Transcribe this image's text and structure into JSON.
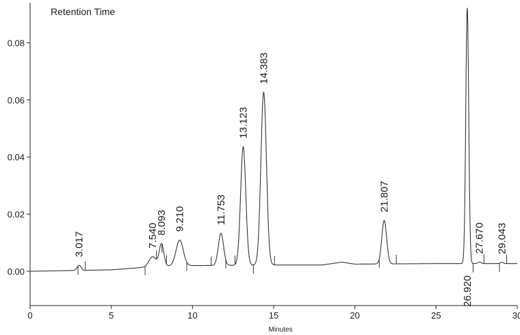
{
  "chart_data": {
    "type": "line",
    "legend": "Retention Time",
    "xlabel": "Minutes",
    "ylabel": "",
    "xlim": [
      0,
      30
    ],
    "ylim": [
      -0.012,
      0.094
    ],
    "xticks": [
      0,
      5,
      10,
      15,
      20,
      25,
      30
    ],
    "xtick_labels": [
      "0",
      "5",
      "10",
      "15",
      "20",
      "25",
      "30"
    ],
    "yticks": [
      0.0,
      0.02,
      0.04,
      0.06,
      0.08
    ],
    "ytick_labels": [
      "0.00",
      "0.02",
      "0.04",
      "0.06",
      "0.08"
    ],
    "grid": false,
    "series": [
      {
        "name": "Retention Time",
        "baseline": [
          [
            0,
            0.0
          ],
          [
            5,
            0.0005
          ],
          [
            8,
            0.0018
          ],
          [
            10,
            0.002
          ],
          [
            15,
            0.0022
          ],
          [
            18,
            0.0022
          ],
          [
            19.2,
            0.0032
          ],
          [
            20,
            0.0025
          ],
          [
            25,
            0.0027
          ],
          [
            30,
            0.0027
          ]
        ],
        "peaks": [
          {
            "label": "3.017",
            "rt": 3.017,
            "height": 0.0018,
            "width": 0.12
          },
          {
            "label": "7.540",
            "rt": 7.54,
            "height": 0.0035,
            "width": 0.22
          },
          {
            "label": "8.093",
            "rt": 8.093,
            "height": 0.0078,
            "width": 0.14
          },
          {
            "label": "9.210",
            "rt": 9.21,
            "height": 0.009,
            "width": 0.22
          },
          {
            "label": "11.753",
            "rt": 11.753,
            "height": 0.0112,
            "width": 0.16
          },
          {
            "label": "13.123",
            "rt": 13.123,
            "height": 0.0415,
            "width": 0.16
          },
          {
            "label": "14.383",
            "rt": 14.383,
            "height": 0.0605,
            "width": 0.17
          },
          {
            "label": "21.807",
            "rt": 21.807,
            "height": 0.0152,
            "width": 0.15
          },
          {
            "label": "26.920",
            "rt": 26.92,
            "height": 0.0895,
            "width": 0.09
          },
          {
            "label": "27.670",
            "rt": 27.67,
            "height": 0.0005,
            "width": 0.1
          },
          {
            "label": "29.043",
            "rt": 29.043,
            "height": 0.0004,
            "width": 0.1
          }
        ]
      }
    ],
    "integration_marks": [
      2.95,
      3.4,
      7.08,
      7.78,
      8.12,
      8.4,
      9.65,
      11.15,
      12.05,
      12.62,
      13.75,
      15.05,
      21.5,
      22.55,
      27.28,
      27.95,
      28.9,
      29.35
    ]
  }
}
